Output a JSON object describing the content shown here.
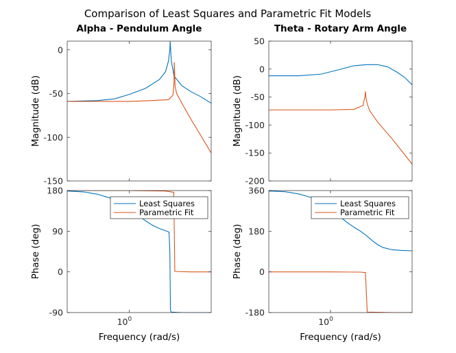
{
  "chart_data": {
    "type": "line",
    "title": "Comparison of Least Squares and Parametric Fit Models",
    "legend": {
      "placement": "top-right",
      "entries": [
        "Least Squares",
        "Parametric Fit"
      ]
    },
    "colors": {
      "least_squares": "#0072BD",
      "parametric_fit": "#D95319"
    },
    "x_axis": {
      "label": "Frequency  (rad/s)",
      "scale": "log",
      "range": [
        0.5,
        2.5
      ],
      "tick_label": "10^0"
    },
    "columns": [
      {
        "title": "Alpha - Pendulum Angle",
        "magnitude": {
          "ylabel": "Magnitude (dB)",
          "ylim": [
            -150,
            10
          ],
          "ticks": [
            "0",
            "-50",
            "-100",
            "-150"
          ],
          "series": [
            {
              "name": "Least Squares",
              "x": [
                0.5,
                0.7,
                0.85,
                1.0,
                1.2,
                1.4,
                1.5,
                1.55,
                1.575,
                1.58,
                1.6,
                1.65,
                1.8,
                2.0,
                2.2,
                2.5
              ],
              "y": [
                -59,
                -58,
                -56,
                -51,
                -44,
                -34,
                -25,
                -13,
                0,
                10,
                -12,
                -30,
                -41,
                -48,
                -53,
                -61
              ]
            },
            {
              "name": "Parametric Fit",
              "x": [
                0.5,
                0.8,
                1.0,
                1.3,
                1.55,
                1.63,
                1.65,
                1.655,
                1.67,
                1.7,
                1.8,
                2.0,
                2.2,
                2.5
              ],
              "y": [
                -59,
                -59,
                -59,
                -58,
                -57,
                -52,
                -38,
                -14,
                -42,
                -50,
                -61,
                -80,
                -96,
                -118
              ]
            }
          ]
        },
        "phase": {
          "ylabel": "Phase (deg)",
          "ylim": [
            -90,
            180
          ],
          "ticks": [
            "180",
            "90",
            "0",
            "-90"
          ],
          "series": [
            {
              "name": "Least Squares",
              "x": [
                0.5,
                0.6,
                0.7,
                0.8,
                0.9,
                1.0,
                1.1,
                1.2,
                1.3,
                1.4,
                1.5,
                1.56,
                1.575,
                1.585,
                1.6,
                1.8,
                2.5
              ],
              "y": [
                179,
                177,
                172,
                164,
                153,
                140,
                126,
                113,
                103,
                96,
                91,
                88,
                45,
                -85,
                -89,
                -90,
                -90
              ]
            },
            {
              "name": "Parametric Fit",
              "x": [
                0.5,
                1.0,
                1.5,
                1.645,
                1.655,
                1.665,
                2.0,
                2.5
              ],
              "y": [
                180,
                180,
                179,
                176,
                90,
                1,
                0,
                0
              ]
            }
          ]
        }
      },
      {
        "title": "Theta - Rotary Arm Angle",
        "magnitude": {
          "ylabel": "Magnitude (dB)",
          "ylim": [
            -200,
            50
          ],
          "ticks": [
            "50",
            "0",
            "-50",
            "-100",
            "-150",
            "-200"
          ],
          "series": [
            {
              "name": "Least Squares",
              "x": [
                0.5,
                0.7,
                0.9,
                1.1,
                1.3,
                1.5,
                1.7,
                1.9,
                2.1,
                2.3,
                2.5
              ],
              "y": [
                -12,
                -12,
                -9,
                -1,
                6,
                8,
                8,
                4,
                -5,
                -15,
                -28
              ]
            },
            {
              "name": "Parametric Fit",
              "x": [
                0.5,
                1.0,
                1.3,
                1.44,
                1.47,
                1.48,
                1.49,
                1.51,
                1.55,
                1.7,
                2.0,
                2.3,
                2.5
              ],
              "y": [
                -73,
                -73,
                -72,
                -65,
                -50,
                -40,
                -52,
                -62,
                -74,
                -95,
                -125,
                -153,
                -170
              ]
            }
          ]
        },
        "phase": {
          "ylabel": "Phase (deg)",
          "ylim": [
            -180,
            360
          ],
          "ticks": [
            "360",
            "180",
            "0",
            "-180"
          ],
          "series": [
            {
              "name": "Least Squares",
              "x": [
                0.5,
                0.6,
                0.7,
                0.8,
                0.9,
                1.0,
                1.1,
                1.2,
                1.3,
                1.4,
                1.5,
                1.6,
                1.7,
                1.8,
                2.0,
                2.2,
                2.5
              ],
              "y": [
                358,
                355,
                345,
                330,
                308,
                280,
                248,
                220,
                198,
                180,
                160,
                138,
                120,
                108,
                98,
                95,
                93
              ]
            },
            {
              "name": "Parametric Fit",
              "x": [
                0.5,
                1.0,
                1.4,
                1.48,
                1.495,
                1.51,
                2.0,
                2.5
              ],
              "y": [
                0,
                0,
                -1,
                -3,
                -90,
                -178,
                -180,
                -180
              ]
            }
          ]
        }
      }
    ]
  }
}
